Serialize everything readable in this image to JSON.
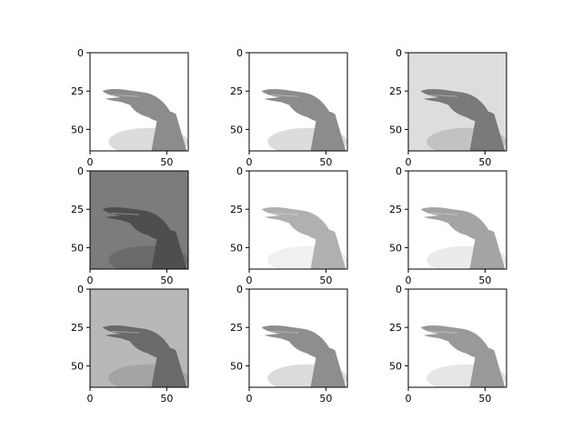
{
  "figure": {
    "background": "#ffffff",
    "axis_color": "#000000",
    "grid": false
  },
  "subplots": [
    {
      "variant": "original",
      "background": "#ffffff",
      "hand": "#8c8c8c",
      "shadow": "#dcdcdc",
      "x_ticks": [
        "0",
        "50"
      ],
      "y_ticks": [
        "0",
        "25",
        "50"
      ]
    },
    {
      "variant": "original-copy",
      "background": "#ffffff",
      "hand": "#8c8c8c",
      "shadow": "#dcdcdc",
      "x_ticks": [
        "0",
        "50"
      ],
      "y_ticks": [
        "0",
        "25",
        "50"
      ]
    },
    {
      "variant": "light-gray-background",
      "background": "#dddddd",
      "hand": "#7a7a7a",
      "shadow": "#c2c2c2",
      "x_ticks": [
        "0",
        "50"
      ],
      "y_ticks": [
        "0",
        "25",
        "50"
      ]
    },
    {
      "variant": "dark-gray-background",
      "background": "#7c7c7c",
      "hand": "#4e4e4e",
      "shadow": "#6a6a6a",
      "x_ticks": [
        "0",
        "50"
      ],
      "y_ticks": [
        "0",
        "25",
        "50"
      ]
    },
    {
      "variant": "high-contrast",
      "background": "#ffffff",
      "hand": "#b0b0b0",
      "shadow": "#f0f0f0",
      "x_ticks": [
        "0",
        "50"
      ],
      "y_ticks": [
        "0",
        "25",
        "50"
      ]
    },
    {
      "variant": "brightened",
      "background": "#ffffff",
      "hand": "#a4a4a4",
      "shadow": "#ebebeb",
      "x_ticks": [
        "0",
        "50"
      ],
      "y_ticks": [
        "0",
        "25",
        "50"
      ]
    },
    {
      "variant": "medium-gray-background",
      "background": "#b8b8b8",
      "hand": "#6a6a6a",
      "shadow": "#a4a4a4",
      "x_ticks": [
        "0",
        "50"
      ],
      "y_ticks": [
        "0",
        "25",
        "50"
      ]
    },
    {
      "variant": "original-repeat",
      "background": "#ffffff",
      "hand": "#8e8e8e",
      "shadow": "#dcdcdc",
      "x_ticks": [
        "0",
        "50"
      ],
      "y_ticks": [
        "0",
        "25",
        "50"
      ]
    },
    {
      "variant": "soft-light",
      "background": "#ffffff",
      "hand": "#999999",
      "shadow": "#e6e6e6",
      "x_ticks": [
        "0",
        "50"
      ],
      "y_ticks": [
        "0",
        "25",
        "50"
      ]
    }
  ]
}
